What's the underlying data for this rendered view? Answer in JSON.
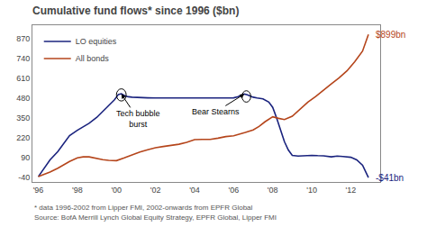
{
  "chart_data": {
    "type": "line",
    "title": "Cumulative fund flows* since 1996 ($bn)",
    "series": [
      {
        "name": "LO equities",
        "color": "#1a237e",
        "x": [
          1996.0,
          1996.3,
          1996.6,
          1997.0,
          1997.3,
          1997.6,
          1998.0,
          1998.3,
          1998.6,
          1999.0,
          1999.3,
          1999.6,
          1999.9,
          2000.1,
          2000.25,
          2000.4,
          2000.6,
          2000.8,
          2001.0,
          2001.3,
          2001.6,
          2002.0,
          2002.3,
          2002.6,
          2003.0,
          2003.3,
          2003.6,
          2004.0,
          2004.3,
          2004.6,
          2005.0,
          2005.3,
          2005.6,
          2006.0,
          2006.2,
          2006.4,
          2006.55,
          2006.7,
          2006.9,
          2007.0,
          2007.2,
          2007.5,
          2007.8,
          2008.0,
          2008.2,
          2008.4,
          2008.6,
          2008.8,
          2009.0,
          2009.3,
          2009.6,
          2010.0,
          2010.3,
          2010.6,
          2011.0,
          2011.3,
          2011.6,
          2012.0,
          2012.3,
          2012.6,
          2012.9
        ],
        "values": [
          -35,
          20,
          75,
          130,
          185,
          235,
          270,
          295,
          315,
          355,
          395,
          435,
          470,
          505,
          510,
          498,
          490,
          487,
          485,
          484,
          483,
          482,
          482,
          481,
          480,
          481,
          482,
          483,
          483,
          483,
          482,
          481,
          481,
          483,
          490,
          500,
          508,
          503,
          492,
          487,
          482,
          476,
          455,
          420,
          350,
          265,
          195,
          140,
          105,
          100,
          103,
          105,
          103,
          102,
          95,
          100,
          97,
          92,
          75,
          40,
          -41
        ],
        "end_label": "-$41bn"
      },
      {
        "name": "All bonds",
        "color": "#b5451b",
        "x": [
          1996.0,
          1996.3,
          1996.6,
          1997.0,
          1997.3,
          1997.6,
          1998.0,
          1998.3,
          1998.6,
          1999.0,
          1999.3,
          1999.6,
          2000.0,
          2000.4,
          2000.8,
          2001.2,
          2001.6,
          2002.0,
          2002.4,
          2002.8,
          2003.2,
          2003.6,
          2004.0,
          2004.4,
          2004.8,
          2005.2,
          2005.6,
          2006.0,
          2006.3,
          2006.6,
          2007.0,
          2007.3,
          2007.6,
          2008.0,
          2008.3,
          2008.6,
          2009.0,
          2009.4,
          2009.8,
          2010.2,
          2010.6,
          2011.0,
          2011.4,
          2011.8,
          2012.2,
          2012.6,
          2012.9
        ],
        "values": [
          -35,
          -20,
          -5,
          20,
          45,
          65,
          88,
          95,
          95,
          83,
          77,
          72,
          70,
          88,
          108,
          127,
          142,
          155,
          163,
          170,
          178,
          190,
          208,
          210,
          210,
          218,
          228,
          233,
          242,
          255,
          272,
          295,
          325,
          358,
          348,
          340,
          362,
          410,
          455,
          492,
          535,
          575,
          615,
          660,
          720,
          790,
          899
        ],
        "end_label": "$899bn"
      }
    ],
    "xlim": [
      1995.7,
      2013.5
    ],
    "xticks": [
      {
        "value": 1996,
        "label": "'96"
      },
      {
        "value": 1998,
        "label": "'98"
      },
      {
        "value": 2000,
        "label": "'00"
      },
      {
        "value": 2002,
        "label": "'02"
      },
      {
        "value": 2004,
        "label": "'04"
      },
      {
        "value": 2006,
        "label": "'06"
      },
      {
        "value": 2008,
        "label": "'08"
      },
      {
        "value": 2010,
        "label": "'10"
      },
      {
        "value": 2012,
        "label": "'12"
      }
    ],
    "ylim": [
      -70,
      960
    ],
    "yticks": [
      -40,
      90,
      220,
      350,
      480,
      610,
      740,
      870
    ],
    "grid": false,
    "legend": "upper left",
    "annotations": [
      {
        "text": "Tech bubble\nburst",
        "x": 2000.25,
        "y": 508,
        "text_x": 2001.1,
        "text_y": 345
      },
      {
        "text": "Bear Stearns",
        "x": 2006.55,
        "y": 508,
        "text_x": 2005.1,
        "text_y": 392
      }
    ],
    "ellipses": [
      {
        "x": 2000.25,
        "y": 502,
        "width": 0.5,
        "height": 80
      },
      {
        "x": 2006.65,
        "y": 492,
        "width": 0.45,
        "height": 75
      }
    ],
    "footnotes": [
      "* data 1996-2002 from Lipper FMI, 2002-onwards from EPFR Global",
      "Source: BofA Merrill Lynch Global Equity Strategy, EPFR Global, Lipper FMI"
    ]
  }
}
